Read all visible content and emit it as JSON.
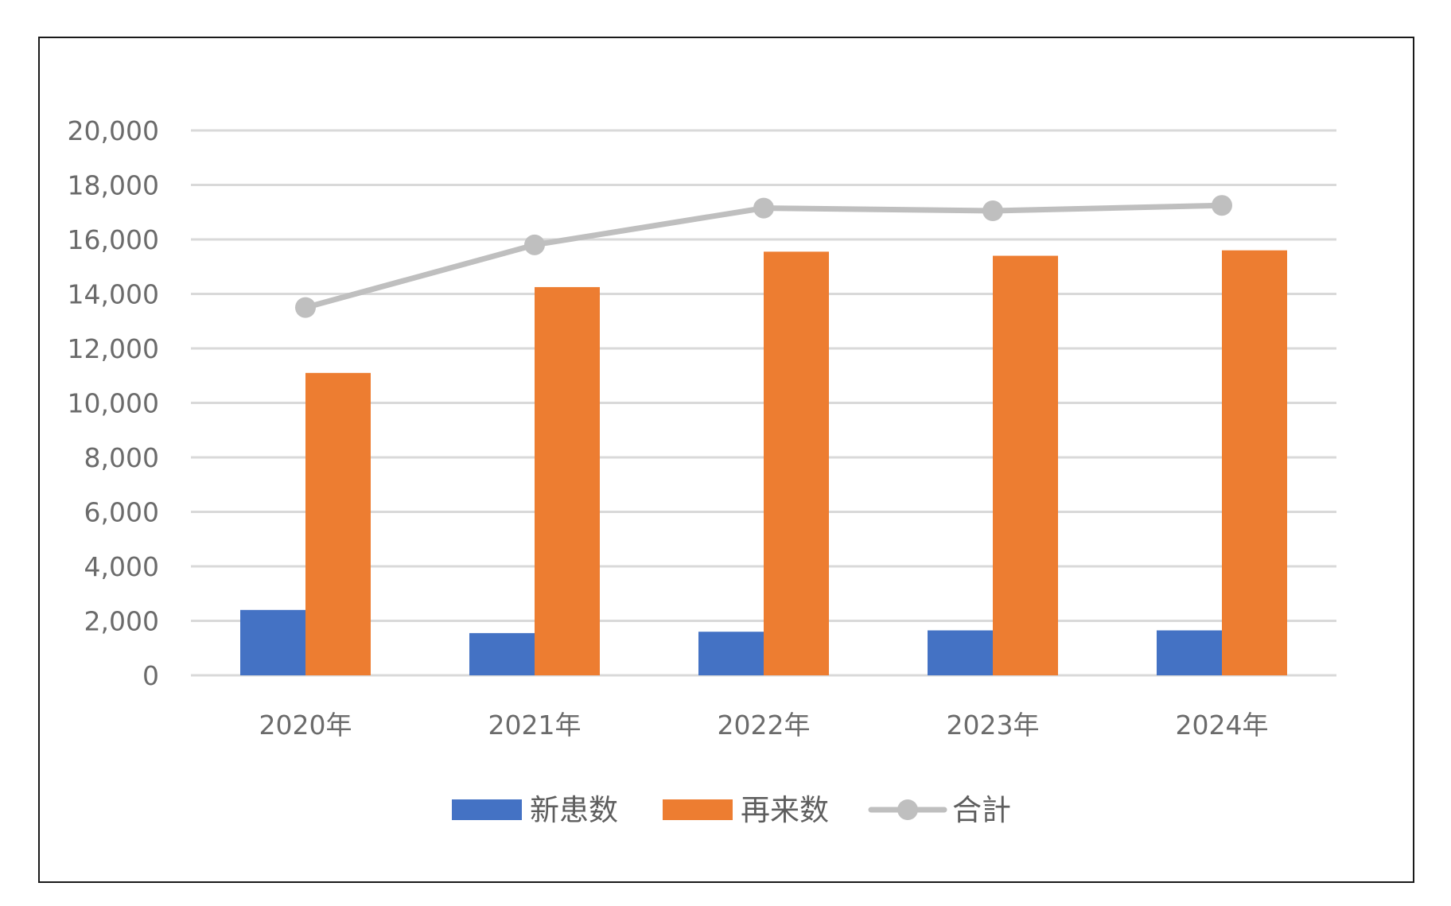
{
  "chart_data": {
    "type": "bar",
    "title": "",
    "xlabel": "",
    "ylabel": "",
    "categories": [
      "2020年",
      "2021年",
      "2022年",
      "2023年",
      "2024年"
    ],
    "ylim": [
      0,
      20000
    ],
    "yticks": [
      0,
      2000,
      4000,
      6000,
      8000,
      10000,
      12000,
      14000,
      16000,
      18000,
      20000
    ],
    "ytick_labels": [
      "0",
      "2,000",
      "4,000",
      "6,000",
      "8,000",
      "10,000",
      "12,000",
      "14,000",
      "16,000",
      "18,000",
      "20,000"
    ],
    "grid": true,
    "legend_position": "bottom",
    "series": [
      {
        "name": "新患数",
        "type": "bar",
        "color": "#4472c4",
        "values": [
          2400,
          1550,
          1600,
          1650,
          1650
        ]
      },
      {
        "name": "再来数",
        "type": "bar",
        "color": "#ed7d31",
        "values": [
          11100,
          14250,
          15550,
          15400,
          15600
        ]
      },
      {
        "name": "合計",
        "type": "line",
        "color": "#bfbfbf",
        "values": [
          13500,
          15800,
          17150,
          17050,
          17250
        ]
      }
    ]
  }
}
